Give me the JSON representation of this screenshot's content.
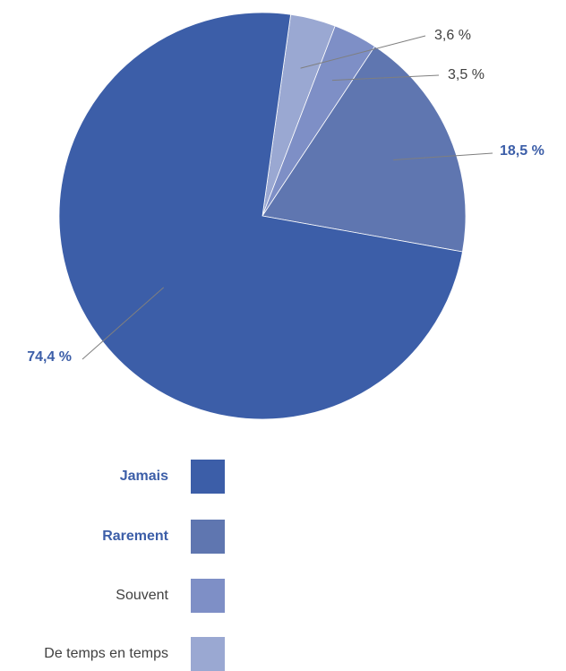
{
  "chart_data": {
    "type": "pie",
    "start_angle_deg": 8,
    "direction": "clockwise",
    "slices": [
      {
        "name": "De temps en temps",
        "value": 3.6,
        "label": "3,6 %",
        "color": "#9aa8d2",
        "label_bold": false,
        "label_color": "#404040"
      },
      {
        "name": "Souvent",
        "value": 3.5,
        "label": "3,5 %",
        "color": "#7e8fc6",
        "label_bold": false,
        "label_color": "#404040"
      },
      {
        "name": "Rarement",
        "value": 18.5,
        "label": "18,5 %",
        "color": "#5f76b0",
        "label_bold": true,
        "label_color": "#3c5ea8"
      },
      {
        "name": "Jamais",
        "value": 74.4,
        "label": "74,4 %",
        "color": "#3c5ea8",
        "label_bold": true,
        "label_color": "#3c5ea8"
      }
    ],
    "legend": [
      {
        "label": "Jamais",
        "color": "#3c5ea8",
        "bold": true
      },
      {
        "label": "Rarement",
        "color": "#5f76b0",
        "bold": true
      },
      {
        "label": "Souvent",
        "color": "#7e8fc6",
        "bold": false
      },
      {
        "label": "De temps en temps",
        "color": "#9aa8d2",
        "bold": false
      }
    ],
    "legend_position": "bottom"
  }
}
